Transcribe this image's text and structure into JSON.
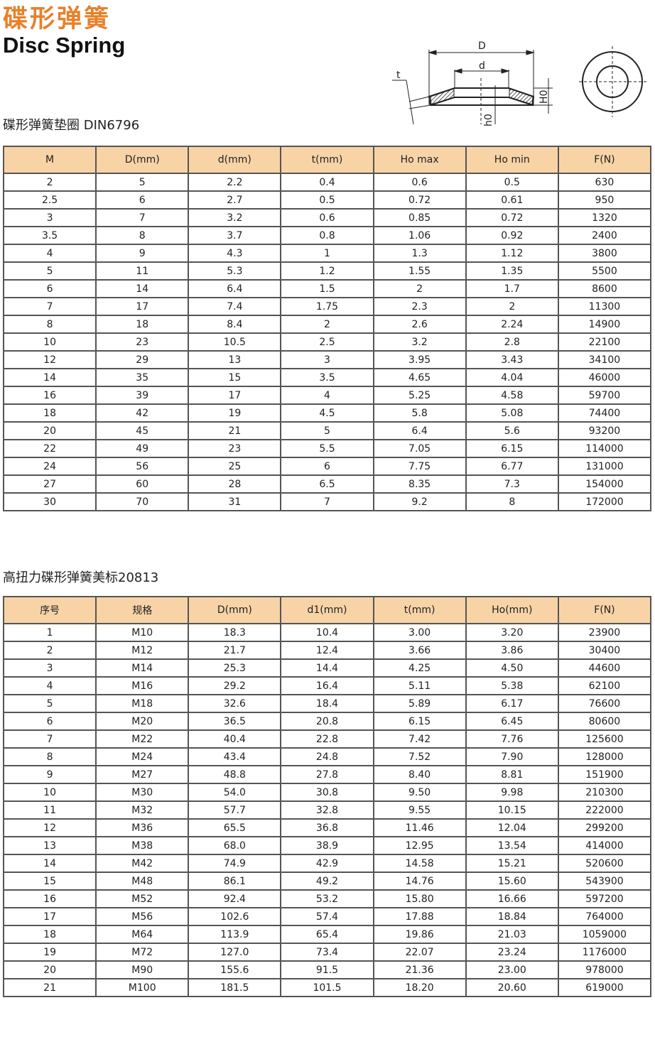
{
  "header": {
    "title_cn": "碟形弹簧",
    "title_en": "Disc Spring"
  },
  "diagram": {
    "labels": {
      "D": "D",
      "d": "d",
      "t": "t",
      "H0": "H0",
      "h0": "h0"
    }
  },
  "table1": {
    "title": "碟形弹簧垫圈 DIN6796",
    "columns": [
      "M",
      "D(mm)",
      "d(mm)",
      "t(mm)",
      "Ho max",
      "Ho min",
      "F(N)"
    ],
    "rows": [
      [
        "2",
        "5",
        "2.2",
        "0.4",
        "0.6",
        "0.5",
        "630"
      ],
      [
        "2.5",
        "6",
        "2.7",
        "0.5",
        "0.72",
        "0.61",
        "950"
      ],
      [
        "3",
        "7",
        "3.2",
        "0.6",
        "0.85",
        "0.72",
        "1320"
      ],
      [
        "3.5",
        "8",
        "3.7",
        "0.8",
        "1.06",
        "0.92",
        "2400"
      ],
      [
        "4",
        "9",
        "4.3",
        "1",
        "1.3",
        "1.12",
        "3800"
      ],
      [
        "5",
        "11",
        "5.3",
        "1.2",
        "1.55",
        "1.35",
        "5500"
      ],
      [
        "6",
        "14",
        "6.4",
        "1.5",
        "2",
        "1.7",
        "8600"
      ],
      [
        "7",
        "17",
        "7.4",
        "1.75",
        "2.3",
        "2",
        "11300"
      ],
      [
        "8",
        "18",
        "8.4",
        "2",
        "2.6",
        "2.24",
        "14900"
      ],
      [
        "10",
        "23",
        "10.5",
        "2.5",
        "3.2",
        "2.8",
        "22100"
      ],
      [
        "12",
        "29",
        "13",
        "3",
        "3.95",
        "3.43",
        "34100"
      ],
      [
        "14",
        "35",
        "15",
        "3.5",
        "4.65",
        "4.04",
        "46000"
      ],
      [
        "16",
        "39",
        "17",
        "4",
        "5.25",
        "4.58",
        "59700"
      ],
      [
        "18",
        "42",
        "19",
        "4.5",
        "5.8",
        "5.08",
        "74400"
      ],
      [
        "20",
        "45",
        "21",
        "5",
        "6.4",
        "5.6",
        "93200"
      ],
      [
        "22",
        "49",
        "23",
        "5.5",
        "7.05",
        "6.15",
        "114000"
      ],
      [
        "24",
        "56",
        "25",
        "6",
        "7.75",
        "6.77",
        "131000"
      ],
      [
        "27",
        "60",
        "28",
        "6.5",
        "8.35",
        "7.3",
        "154000"
      ],
      [
        "30",
        "70",
        "31",
        "7",
        "9.2",
        "8",
        "172000"
      ]
    ]
  },
  "table2": {
    "title": "高扭力碟形弹簧美标20813",
    "columns": [
      "序号",
      "规格",
      "D(mm)",
      "d1(mm)",
      "t(mm)",
      "Ho(mm)",
      "F(N)"
    ],
    "rows": [
      [
        "1",
        "M10",
        "18.3",
        "10.4",
        "3.00",
        "3.20",
        "23900"
      ],
      [
        "2",
        "M12",
        "21.7",
        "12.4",
        "3.66",
        "3.86",
        "30400"
      ],
      [
        "3",
        "M14",
        "25.3",
        "14.4",
        "4.25",
        "4.50",
        "44600"
      ],
      [
        "4",
        "M16",
        "29.2",
        "16.4",
        "5.11",
        "5.38",
        "62100"
      ],
      [
        "5",
        "M18",
        "32.6",
        "18.4",
        "5.89",
        "6.17",
        "76600"
      ],
      [
        "6",
        "M20",
        "36.5",
        "20.8",
        "6.15",
        "6.45",
        "80600"
      ],
      [
        "7",
        "M22",
        "40.4",
        "22.8",
        "7.42",
        "7.76",
        "125600"
      ],
      [
        "8",
        "M24",
        "43.4",
        "24.8",
        "7.52",
        "7.90",
        "128000"
      ],
      [
        "9",
        "M27",
        "48.8",
        "27.8",
        "8.40",
        "8.81",
        "151900"
      ],
      [
        "10",
        "M30",
        "54.0",
        "30.8",
        "9.50",
        "9.98",
        "210300"
      ],
      [
        "11",
        "M32",
        "57.7",
        "32.8",
        "9.55",
        "10.15",
        "222000"
      ],
      [
        "12",
        "M36",
        "65.5",
        "36.8",
        "11.46",
        "12.04",
        "299200"
      ],
      [
        "13",
        "M38",
        "68.0",
        "38.9",
        "12.95",
        "13.54",
        "414000"
      ],
      [
        "14",
        "M42",
        "74.9",
        "42.9",
        "14.58",
        "15.21",
        "520600"
      ],
      [
        "15",
        "M48",
        "86.1",
        "49.2",
        "14.76",
        "15.60",
        "543900"
      ],
      [
        "16",
        "M52",
        "92.4",
        "53.2",
        "15.80",
        "16.66",
        "597200"
      ],
      [
        "17",
        "M56",
        "102.6",
        "57.4",
        "17.88",
        "18.84",
        "764000"
      ],
      [
        "18",
        "M64",
        "113.9",
        "65.4",
        "19.86",
        "21.03",
        "1059000"
      ],
      [
        "19",
        "M72",
        "127.0",
        "73.4",
        "22.07",
        "23.24",
        "1176000"
      ],
      [
        "20",
        "M90",
        "155.6",
        "91.5",
        "21.36",
        "23.00",
        "978000"
      ],
      [
        "21",
        "M100",
        "181.5",
        "101.5",
        "18.20",
        "20.60",
        "619000"
      ]
    ]
  },
  "colors": {
    "brand": "#e8802a",
    "header_bg": "#f7d3a6"
  }
}
